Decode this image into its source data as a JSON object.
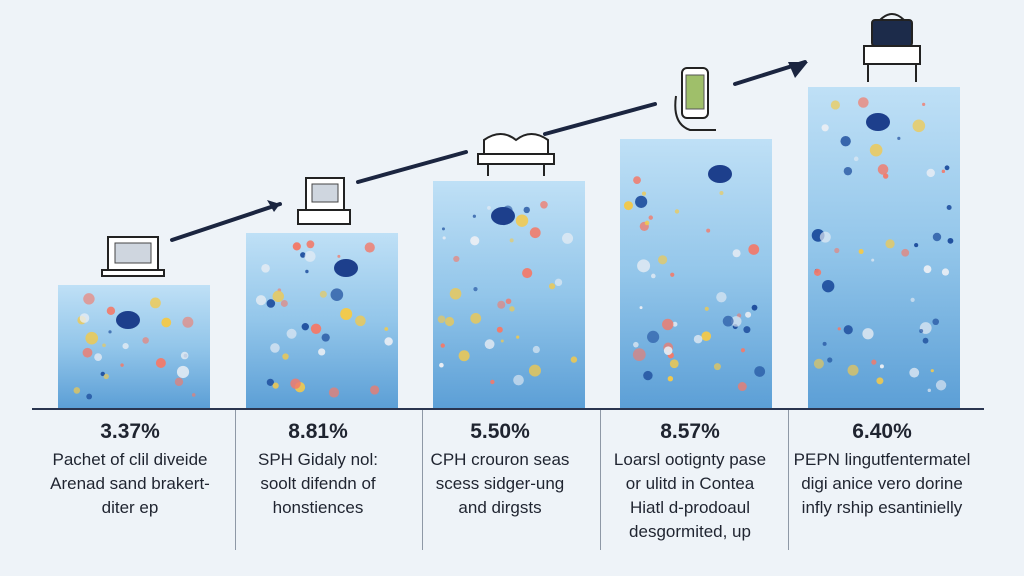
{
  "chart_data": {
    "type": "bar",
    "title": "",
    "xlabel": "",
    "ylabel": "",
    "categories": [
      "Pachet of clil diveide\nArenad sand brakert-\nditer ep",
      "SPH Gidaly nol:\nsoolt difendn of\nhonstiences",
      "CPH crouron seas\nscess sidger-ung\nand dirgsts",
      "Loarsl ootignty pase\nor ulitd in Contea\nHiatl d-prodoaul\ndesgormited, up",
      "PEPN lingutfentermatel\ndigi anice vero dorine\ninfly rship esantinielly"
    ],
    "values": [
      3.37,
      8.81,
      5.5,
      8.57,
      6.4
    ],
    "value_labels": [
      "3.37%",
      "8.81%",
      "5.50%",
      "8.57%",
      "6.40%"
    ],
    "bar_color": "#9fcdee",
    "bar_color_bottom": "#6aa9dc",
    "dot_colors": [
      "#f27a6a",
      "#f2c94c",
      "#1f4f9e",
      "#e8edf4"
    ],
    "trend": "rising step arrow",
    "icons": [
      "laptop-icon",
      "desktop-computer-icon",
      "open-book-icon",
      "smartphone-icon",
      "shopping-bag-icon"
    ]
  }
}
